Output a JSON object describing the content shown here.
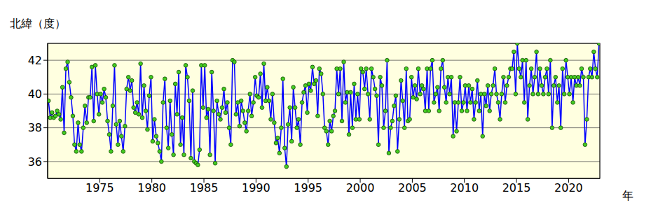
{
  "chart_data": {
    "type": "line",
    "x_label": "年",
    "y_label": "北緯（度）",
    "xlim": [
      1970,
      2023
    ],
    "xticks": [
      1975,
      1980,
      1985,
      1990,
      1995,
      2000,
      2005,
      2010,
      2015,
      2020
    ],
    "ylim": [
      35,
      43
    ],
    "yticks": [
      36,
      38,
      40,
      42
    ],
    "grid": true,
    "color": "#0000ff",
    "marker": "circle",
    "line_style": "solid",
    "x": [
      1970.08,
      1970.25,
      1970.42,
      1970.58,
      1970.75,
      1970.92,
      1971.08,
      1971.25,
      1971.42,
      1971.58,
      1971.75,
      1971.92,
      1972.08,
      1972.25,
      1972.42,
      1972.58,
      1972.75,
      1972.92,
      1973.08,
      1973.25,
      1973.42,
      1973.58,
      1973.75,
      1973.92,
      1974.08,
      1974.25,
      1974.42,
      1974.58,
      1974.75,
      1974.92,
      1975.08,
      1975.25,
      1975.42,
      1975.58,
      1975.75,
      1975.92,
      1976.08,
      1976.25,
      1976.42,
      1976.58,
      1976.75,
      1976.92,
      1977.08,
      1977.25,
      1977.42,
      1977.58,
      1977.75,
      1977.92,
      1978.08,
      1978.25,
      1978.42,
      1978.58,
      1978.75,
      1978.92,
      1979.08,
      1979.25,
      1979.42,
      1979.58,
      1979.75,
      1979.92,
      1980.08,
      1980.25,
      1980.42,
      1980.58,
      1980.75,
      1980.92,
      1981.08,
      1981.25,
      1981.42,
      1981.58,
      1981.75,
      1981.92,
      1982.08,
      1982.25,
      1982.42,
      1982.58,
      1982.75,
      1982.92,
      1983.08,
      1983.25,
      1983.42,
      1983.58,
      1983.75,
      1983.92,
      1984.08,
      1984.25,
      1984.42,
      1984.58,
      1984.75,
      1984.92,
      1985.08,
      1985.25,
      1985.42,
      1985.58,
      1985.75,
      1985.92,
      1986.08,
      1986.25,
      1986.42,
      1986.58,
      1986.75,
      1986.92,
      1987.08,
      1987.25,
      1987.42,
      1987.58,
      1987.75,
      1987.92,
      1988.08,
      1988.25,
      1988.42,
      1988.58,
      1988.75,
      1988.92,
      1989.08,
      1989.25,
      1989.42,
      1989.58,
      1989.75,
      1989.92,
      1990.08,
      1990.25,
      1990.42,
      1990.58,
      1990.75,
      1990.92,
      1991.08,
      1991.25,
      1991.42,
      1991.58,
      1991.75,
      1991.92,
      1992.08,
      1992.25,
      1992.42,
      1992.58,
      1992.75,
      1992.92,
      1993.08,
      1993.25,
      1993.42,
      1993.58,
      1993.75,
      1993.92,
      1994.08,
      1994.25,
      1994.42,
      1994.58,
      1994.75,
      1994.92,
      1995.08,
      1995.25,
      1995.42,
      1995.58,
      1995.75,
      1995.92,
      1996.08,
      1996.25,
      1996.42,
      1996.58,
      1996.75,
      1996.92,
      1997.08,
      1997.25,
      1997.42,
      1997.58,
      1997.75,
      1997.92,
      1998.08,
      1998.25,
      1998.42,
      1998.58,
      1998.75,
      1998.92,
      1999.08,
      1999.25,
      1999.42,
      1999.58,
      1999.75,
      1999.92,
      2000.08,
      2000.25,
      2000.42,
      2000.58,
      2000.75,
      2000.92,
      2001.08,
      2001.25,
      2001.42,
      2001.58,
      2001.75,
      2001.92,
      2002.08,
      2002.25,
      2002.42,
      2002.58,
      2002.75,
      2002.92,
      2003.08,
      2003.25,
      2003.42,
      2003.58,
      2003.75,
      2003.92,
      2004.08,
      2004.25,
      2004.42,
      2004.58,
      2004.75,
      2004.92,
      2005.08,
      2005.25,
      2005.42,
      2005.58,
      2005.75,
      2005.92,
      2006.08,
      2006.25,
      2006.42,
      2006.58,
      2006.75,
      2006.92,
      2007.08,
      2007.25,
      2007.42,
      2007.58,
      2007.75,
      2007.92,
      2008.08,
      2008.25,
      2008.42,
      2008.58,
      2008.75,
      2008.92,
      2009.08,
      2009.25,
      2009.42,
      2009.58,
      2009.75,
      2009.92,
      2010.08,
      2010.25,
      2010.42,
      2010.58,
      2010.75,
      2010.92,
      2011.08,
      2011.25,
      2011.42,
      2011.58,
      2011.75,
      2011.92,
      2012.08,
      2012.25,
      2012.42,
      2012.58,
      2012.75,
      2012.92,
      2013.08,
      2013.25,
      2013.42,
      2013.58,
      2013.75,
      2013.92,
      2014.08,
      2014.25,
      2014.42,
      2014.58,
      2014.75,
      2014.92,
      2015.08,
      2015.25,
      2015.42,
      2015.58,
      2015.75,
      2015.92,
      2016.08,
      2016.25,
      2016.42,
      2016.58,
      2016.75,
      2016.92,
      2017.08,
      2017.25,
      2017.42,
      2017.58,
      2017.75,
      2017.92,
      2018.08,
      2018.25,
      2018.42,
      2018.58,
      2018.75,
      2018.92,
      2019.08,
      2019.25,
      2019.42,
      2019.58,
      2019.75,
      2019.92,
      2020.08,
      2020.25,
      2020.42,
      2020.58,
      2020.75,
      2020.92,
      2021.08,
      2021.25,
      2021.42,
      2021.58,
      2021.75,
      2021.92,
      2022.08,
      2022.25,
      2022.42,
      2022.58,
      2022.75,
      2022.92
    ],
    "values": [
      39.6,
      38.6,
      38.9,
      38.6,
      38.7,
      39.0,
      38.8,
      38.5,
      40.4,
      37.7,
      41.5,
      41.9,
      40.7,
      39.8,
      38.7,
      37.0,
      36.6,
      38.3,
      37.0,
      36.6,
      38.0,
      39.3,
      38.3,
      39.8,
      39.8,
      41.6,
      38.4,
      41.7,
      40.0,
      38.8,
      40.0,
      39.5,
      40.3,
      39.8,
      38.4,
      37.6,
      36.6,
      39.3,
      41.7,
      38.2,
      37.0,
      38.4,
      37.5,
      36.6,
      38.1,
      40.3,
      41.0,
      40.2,
      40.8,
      39.2,
      38.9,
      39.5,
      38.8,
      41.8,
      38.6,
      40.5,
      39.0,
      37.9,
      39.9,
      41.0,
      37.2,
      38.5,
      37.5,
      37.1,
      36.6,
      36.0,
      39.5,
      40.9,
      38.0,
      36.8,
      39.6,
      37.6,
      36.4,
      40.6,
      38.8,
      41.3,
      37.0,
      38.6,
      36.4,
      41.7,
      41.0,
      39.6,
      36.2,
      40.2,
      36.0,
      35.9,
      35.8,
      36.7,
      41.7,
      39.2,
      41.7,
      38.6,
      39.1,
      36.4,
      41.3,
      39.0,
      35.9,
      39.6,
      38.8,
      38.5,
      39.2,
      40.3,
      38.9,
      39.5,
      38.0,
      37.0,
      42.0,
      41.9,
      38.8,
      39.5,
      38.1,
      39.6,
      39.0,
      38.3,
      37.8,
      39.0,
      40.0,
      38.7,
      39.5,
      41.0,
      39.9,
      39.8,
      41.2,
      39.2,
      41.8,
      39.6,
      40.4,
      39.6,
      38.5,
      40.0,
      38.3,
      37.1,
      37.4,
      36.5,
      38.0,
      40.9,
      36.8,
      35.7,
      38.2,
      39.2,
      37.2,
      40.4,
      39.2,
      38.0,
      38.5,
      37.0,
      39.5,
      40.1,
      40.5,
      38.9,
      40.6,
      40.2,
      41.6,
      40.6,
      40.8,
      38.7,
      41.5,
      41.2,
      40.0,
      38.0,
      37.8,
      37.0,
      38.4,
      37.8,
      38.7,
      39.0,
      41.5,
      40.0,
      41.5,
      38.4,
      41.9,
      39.5,
      40.1,
      37.6,
      40.1,
      38.0,
      40.6,
      38.5,
      40.0,
      38.5,
      41.5,
      41.3,
      40.3,
      41.5,
      40.0,
      38.5,
      41.5,
      41.0,
      40.3,
      39.9,
      37.0,
      41.0,
      40.5,
      38.0,
      39.0,
      42.0,
      36.5,
      38.0,
      38.4,
      39.3,
      39.9,
      36.6,
      38.5,
      40.8,
      39.6,
      38.0,
      41.5,
      38.4,
      38.5,
      41.0,
      39.8,
      40.5,
      39.7,
      41.5,
      40.0,
      40.5,
      40.3,
      39.0,
      41.5,
      39.0,
      41.5,
      42.0,
      39.5,
      40.0,
      40.4,
      39.0,
      41.5,
      42.0,
      40.4,
      39.5,
      41.0,
      40.0,
      41.0,
      37.5,
      39.5,
      37.8,
      39.5,
      41.0,
      39.0,
      39.5,
      40.5,
      39.0,
      40.5,
      39.5,
      40.3,
      38.5,
      39.5,
      40.8,
      39.0,
      40.0,
      37.5,
      40.0,
      39.3,
      40.5,
      39.0,
      40.0,
      40.5,
      41.5,
      40.0,
      39.5,
      38.5,
      40.0,
      41.0,
      39.5,
      40.5,
      41.0,
      41.5,
      41.5,
      42.5,
      40.0,
      43.0,
      41.5,
      41.0,
      42.0,
      39.5,
      42.0,
      38.5,
      40.5,
      41.5,
      40.0,
      41.0,
      42.5,
      40.0,
      41.5,
      40.5,
      40.0,
      41.0,
      41.5,
      40.0,
      42.0,
      38.0,
      40.5,
      41.0,
      39.5,
      40.5,
      38.0,
      41.5,
      40.0,
      42.0,
      41.0,
      40.0,
      41.0,
      39.5,
      41.0,
      40.5,
      41.0,
      40.5,
      41.5,
      41.0,
      37.0,
      38.5,
      41.0,
      41.5,
      41.0,
      42.5,
      41.5,
      41.0,
      43.0
    ]
  }
}
